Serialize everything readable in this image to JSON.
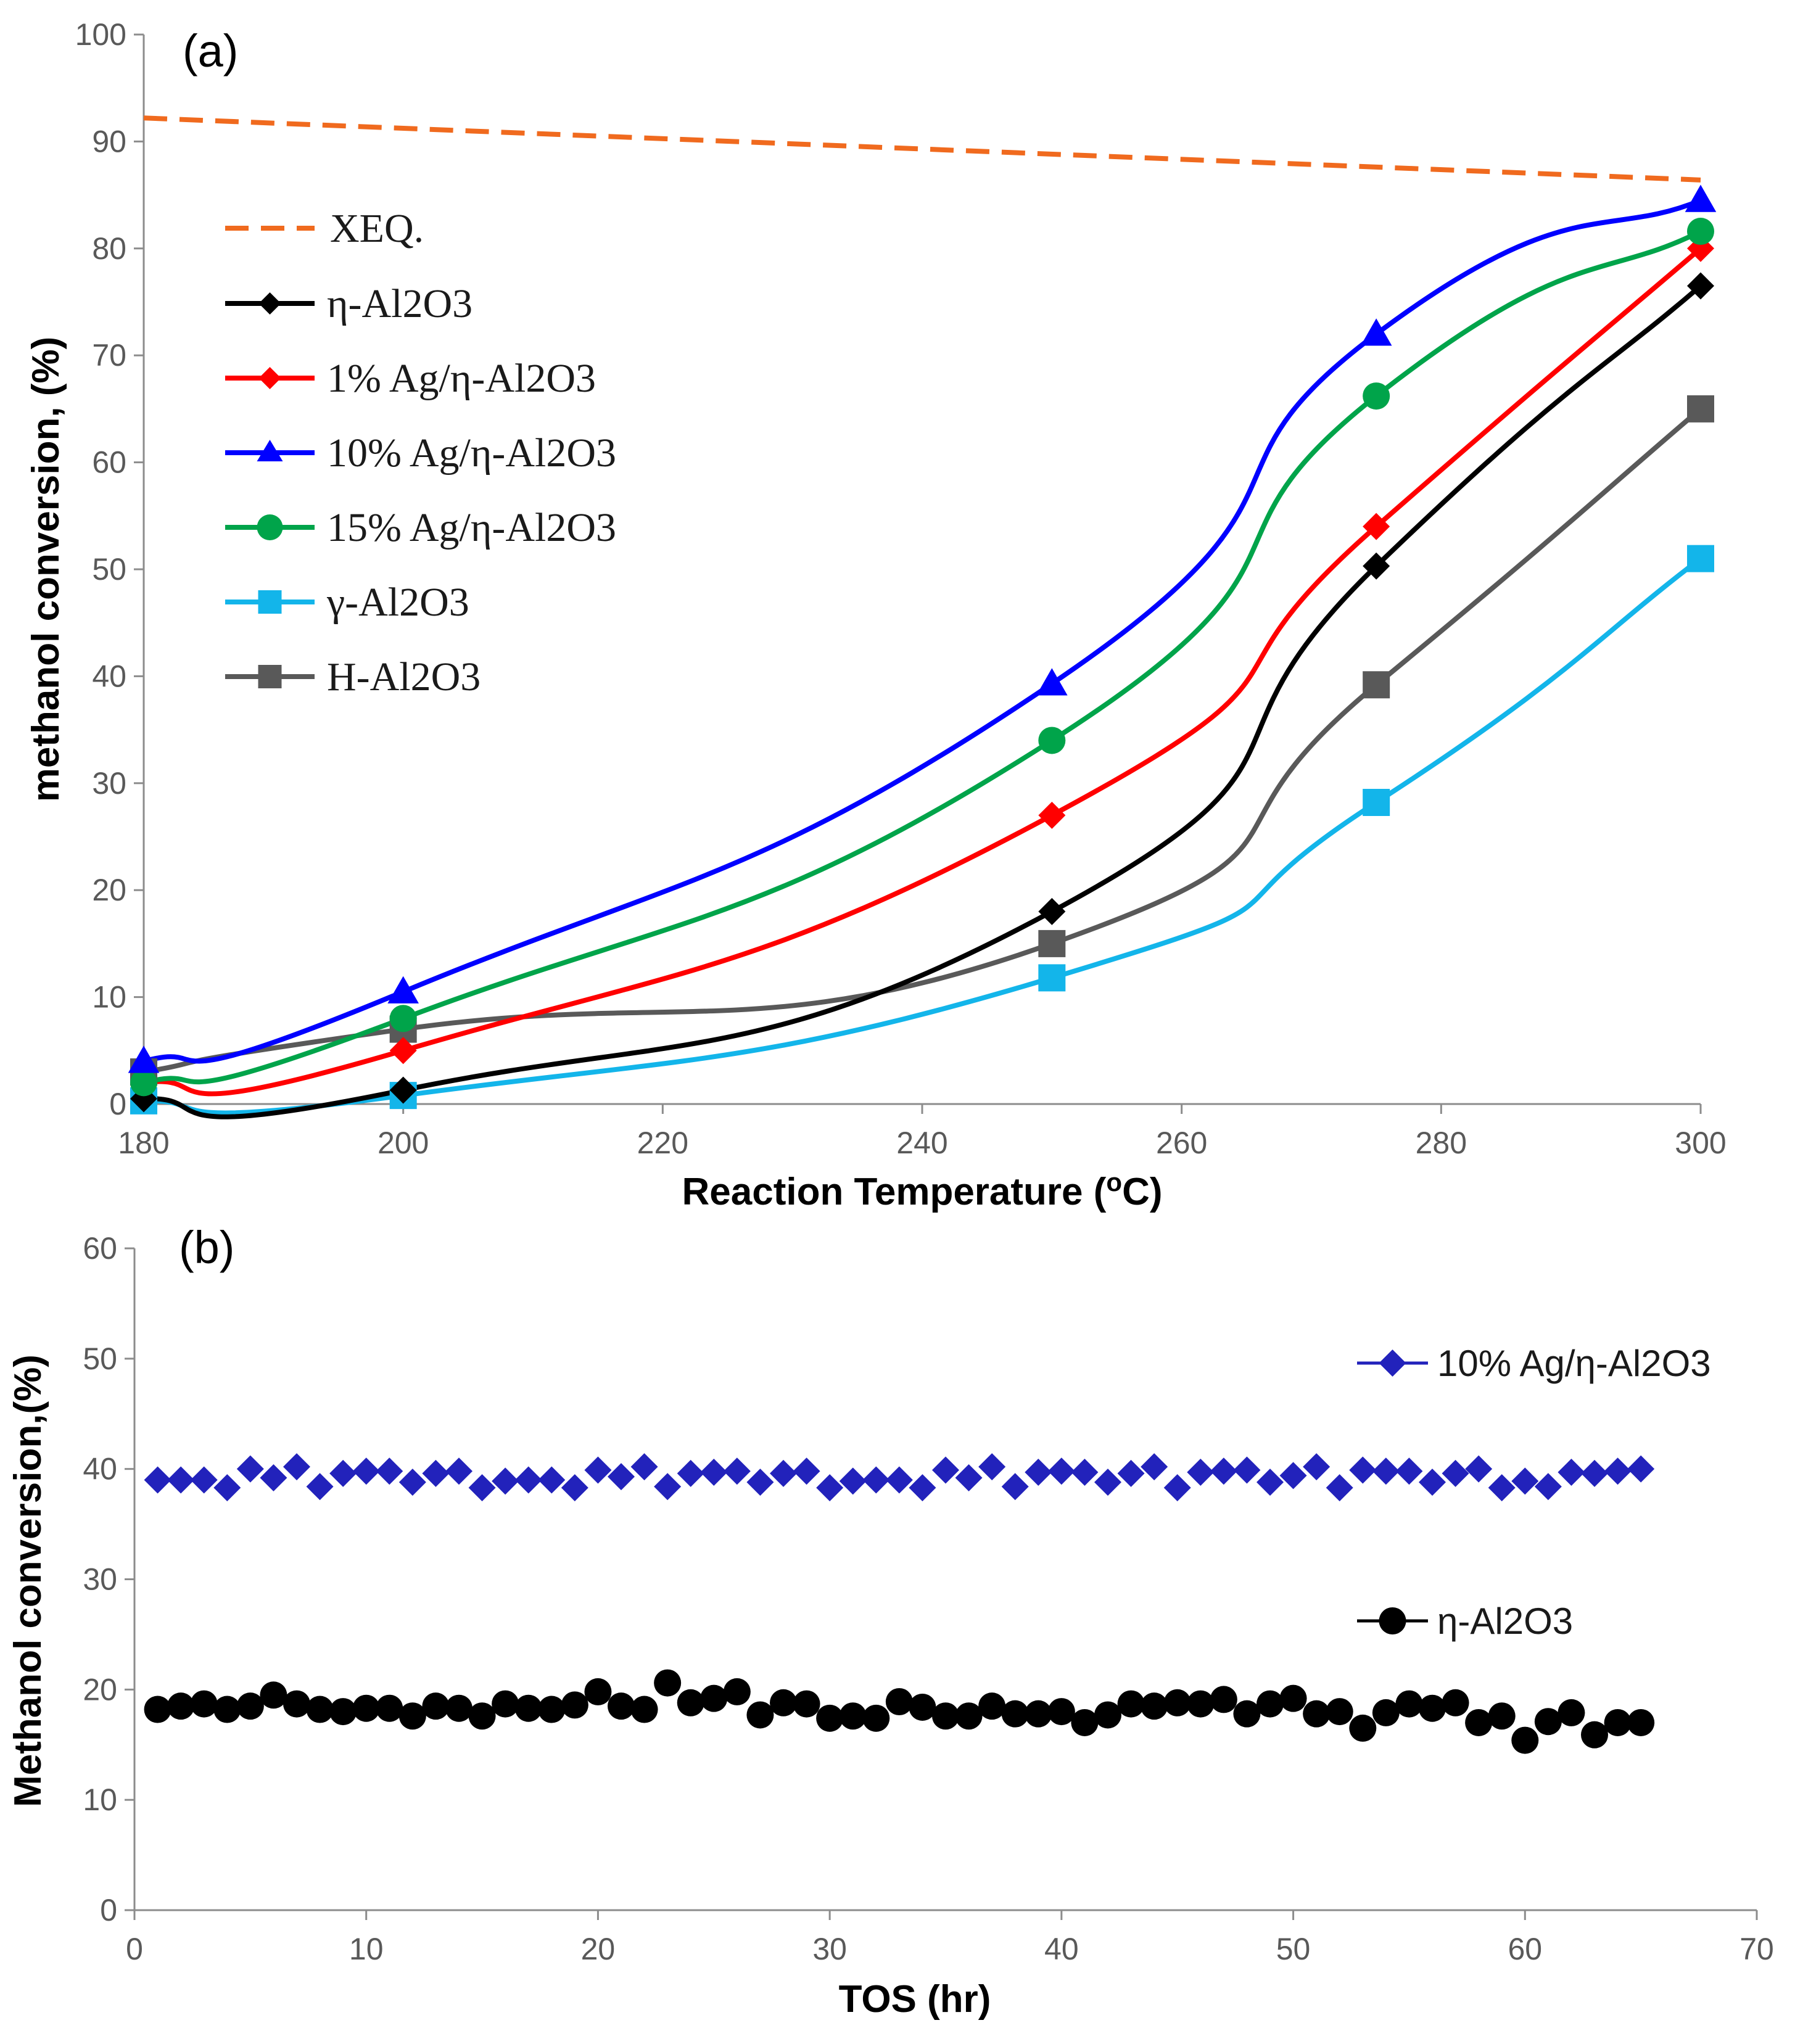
{
  "chart_data": [
    {
      "panel": "(a)",
      "type": "line",
      "xlabel": "Reaction Temperature (",
      "xlabel_sup": "o",
      "xlabel_end": "C)",
      "ylabel": "methanol conversion, (%)",
      "xlim": [
        180,
        300
      ],
      "ylim": [
        0,
        100
      ],
      "xticks": [
        "180",
        "200",
        "220",
        "240",
        "260",
        "280",
        "300"
      ],
      "yticks": [
        "0",
        "10",
        "20",
        "30",
        "40",
        "50",
        "60",
        "70",
        "80",
        "90",
        "100"
      ],
      "x": [
        180,
        200,
        250,
        275,
        300
      ],
      "series": [
        {
          "name": "XEQ.",
          "color": "#f06a1e",
          "marker": "none",
          "dashed": true,
          "x": [
            180,
            300
          ],
          "values": [
            92.2,
            86.4
          ]
        },
        {
          "name": "η-Al2O3",
          "color": "#000000",
          "marker": "diamond",
          "values": [
            0.5,
            1.3,
            18,
            50.3,
            76.5
          ]
        },
        {
          "name": "1% Ag/η-Al2O3",
          "color": "#ff0000",
          "marker": "diamond",
          "values": [
            2,
            5,
            27,
            54,
            80
          ]
        },
        {
          "name": "10% Ag/η-Al2O3",
          "color": "#0000ff",
          "marker": "triangle",
          "values": [
            4,
            10.5,
            39.3,
            72,
            84.5
          ]
        },
        {
          "name": "15% Ag/η-Al2O3",
          "color": "#00a44a",
          "marker": "circle",
          "values": [
            2,
            8,
            34,
            66.2,
            81.6
          ]
        },
        {
          "name": "γ-Al2O3",
          "color": "#13b5ea",
          "marker": "square",
          "values": [
            0.3,
            0.8,
            11.8,
            28.2,
            51
          ]
        },
        {
          "name": "H-Al2O3",
          "color": "#595959",
          "marker": "square",
          "values": [
            3,
            7,
            15,
            39.2,
            65
          ]
        }
      ]
    },
    {
      "panel": "(b)",
      "type": "scatter",
      "xlabel": "TOS (hr)",
      "ylabel": "Methanol conversion,(%)",
      "xlim": [
        0,
        70
      ],
      "ylim": [
        0,
        60
      ],
      "xticks": [
        "0",
        "10",
        "20",
        "30",
        "40",
        "50",
        "60",
        "70"
      ],
      "yticks": [
        "0",
        "10",
        "20",
        "30",
        "40",
        "50",
        "60"
      ],
      "x": [
        1,
        2,
        3,
        4,
        5,
        6,
        7,
        8,
        9,
        10,
        11,
        12,
        13,
        14,
        15,
        16,
        17,
        18,
        19,
        20,
        21,
        22,
        23,
        24,
        25,
        26,
        27,
        28,
        29,
        30,
        31,
        32,
        33,
        34,
        35,
        36,
        37,
        38,
        39,
        40,
        41,
        42,
        43,
        44,
        45,
        46,
        47,
        48,
        49,
        50,
        51,
        52,
        53,
        54,
        55,
        56,
        57,
        58,
        59,
        60,
        61,
        62,
        63,
        64,
        65
      ],
      "series": [
        {
          "name": "10% Ag/η-Al2O3",
          "color": "#2222bb",
          "marker": "diamond",
          "values": [
            39,
            39,
            39,
            38.3,
            40,
            39.2,
            40.2,
            38.4,
            39.6,
            39.8,
            39.8,
            38.8,
            39.6,
            39.8,
            38.3,
            38.9,
            39,
            39,
            38.3,
            39.9,
            39.3,
            40.2,
            38.4,
            39.6,
            39.7,
            39.8,
            38.8,
            39.6,
            39.8,
            38.3,
            38.9,
            39,
            39,
            38.3,
            39.9,
            39.2,
            40.2,
            38.4,
            39.7,
            39.8,
            39.7,
            38.8,
            39.6,
            40.2,
            38.3,
            39.7,
            39.8,
            39.9,
            38.8,
            39.4,
            40.2,
            38.3,
            39.9,
            39.8,
            39.8,
            38.8,
            39.6,
            40,
            38.3,
            38.9,
            38.4,
            39.7,
            39.6,
            39.8,
            40
          ]
        },
        {
          "name": "η-Al2O3",
          "color": "#000000",
          "marker": "circle",
          "values": [
            18.2,
            18.5,
            18.7,
            18.2,
            18.5,
            19.5,
            18.7,
            18.2,
            18,
            18.3,
            18.3,
            17.6,
            18.5,
            18.3,
            17.6,
            18.7,
            18.3,
            18.2,
            18.6,
            19.8,
            18.5,
            18.2,
            20.6,
            18.8,
            19.2,
            19.8,
            17.7,
            18.8,
            18.7,
            17.4,
            17.6,
            17.4,
            18.9,
            18.4,
            17.6,
            17.6,
            18.5,
            17.8,
            17.8,
            18,
            17,
            17.7,
            18.7,
            18.5,
            18.8,
            18.7,
            19.1,
            17.8,
            18.7,
            19.2,
            17.8,
            18,
            16.5,
            17.9,
            18.7,
            18.3,
            18.8,
            17,
            17.6,
            15.4,
            17.1,
            17.9,
            15.9,
            17,
            17
          ]
        }
      ]
    }
  ]
}
